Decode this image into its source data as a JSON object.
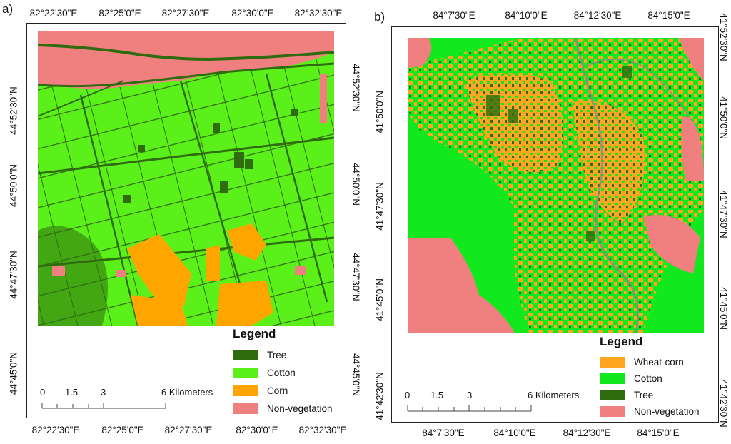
{
  "panel_a": {
    "label": "a)",
    "top_ticks": [
      "82°22'30\"E",
      "82°25'0\"E",
      "82°27'30\"E",
      "82°30'0\"E",
      "82°32'30\"E"
    ],
    "bottom_ticks": [
      "82°22'30\"E",
      "82°25'0\"E",
      "82°27'30\"E",
      "82°30'0\"E",
      "82°32'30\"E"
    ],
    "left_ticks": [
      "44°52'30\"N",
      "44°50'0\"N",
      "44°47'30\"N",
      "44°45'0\"N"
    ],
    "right_ticks": [
      "44°52'30\"N",
      "44°50'0\"N",
      "44°47'30\"N",
      "44°45'0\"N"
    ],
    "legend": {
      "title": "Legend",
      "items": [
        {
          "label": "Tree",
          "color": "#2f6b0f"
        },
        {
          "label": "Cotton",
          "color": "#5cf01a"
        },
        {
          "label": "Corn",
          "color": "#ffa500"
        },
        {
          "label": "Non-vegetation",
          "color": "#f08080"
        }
      ]
    },
    "scale": {
      "labels": [
        "0",
        "1.5",
        "3",
        "6 Kilometers"
      ]
    }
  },
  "panel_b": {
    "label": "b)",
    "top_ticks": [
      "84°7'30\"E",
      "84°10'0\"E",
      "84°12'30\"E",
      "84°15'0\"E"
    ],
    "bottom_ticks": [
      "84°7'30\"E",
      "84°10'0\"E",
      "84°12'30\"E",
      "84°15'0\"E"
    ],
    "left_ticks": [
      "41°50'0\"N",
      "41°47'30\"N",
      "41°45'0\"N",
      "41°42'30\"N"
    ],
    "right_ticks": [
      "41°52'30\"N",
      "41°50'0\"N",
      "41°47'30\"N",
      "41°45'0\"N",
      "41°42'30\"N"
    ],
    "legend": {
      "title": "Legend",
      "items": [
        {
          "label": "Wheat-corn",
          "color": "#ffa520"
        },
        {
          "label": "Cotton",
          "color": "#12e81e"
        },
        {
          "label": "Tree",
          "color": "#2f6b0f"
        },
        {
          "label": "Non-vegetation",
          "color": "#f08080"
        }
      ]
    },
    "scale": {
      "labels": [
        "0",
        "1.5",
        "3",
        "6 Kilometers"
      ]
    }
  }
}
